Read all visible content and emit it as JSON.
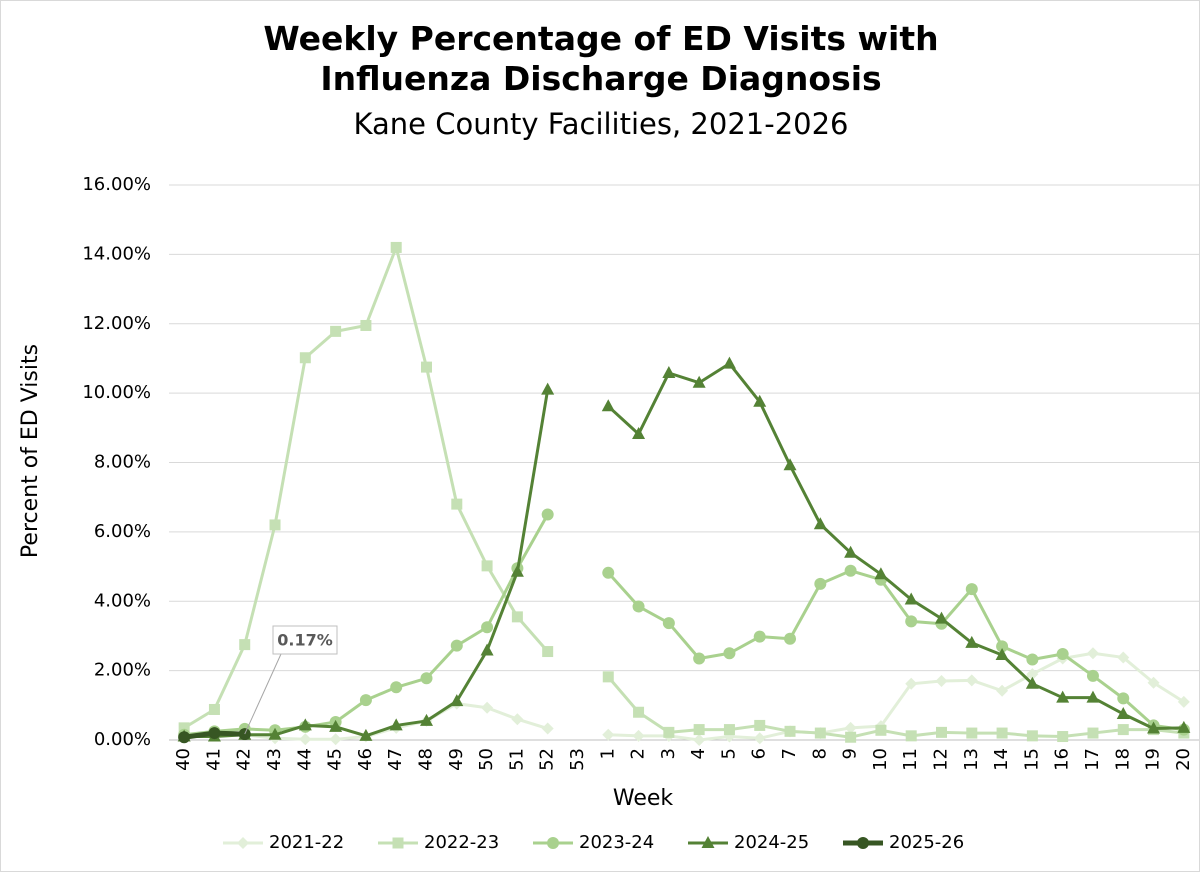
{
  "chart_data": {
    "type": "line",
    "title": "Weekly Percentage of ED Visits with Influenza Discharge Diagnosis",
    "subtitle": "Kane County Facilities, 2021-2026",
    "x_label": "Week",
    "y_label": "Percent of ED Visits",
    "categories": [
      "40",
      "41",
      "42",
      "43",
      "44",
      "45",
      "46",
      "47",
      "48",
      "49",
      "50",
      "51",
      "52",
      "53",
      "1",
      "2",
      "3",
      "4",
      "5",
      "6",
      "7",
      "8",
      "9",
      "10",
      "11",
      "12",
      "13",
      "14",
      "15",
      "16",
      "17",
      "18",
      "19",
      "20"
    ],
    "ylim": [
      0,
      16
    ],
    "yticks": [
      {
        "value": 0,
        "label": "0.00%"
      },
      {
        "value": 2,
        "label": "2.00%"
      },
      {
        "value": 4,
        "label": "4.00%"
      },
      {
        "value": 6,
        "label": "6.00%"
      },
      {
        "value": 8,
        "label": "8.00%"
      },
      {
        "value": 10,
        "label": "10.00%"
      },
      {
        "value": 12,
        "label": "12.00%"
      },
      {
        "value": 14,
        "label": "14.00%"
      },
      {
        "value": 16,
        "label": "16.00%"
      }
    ],
    "grid": true,
    "legend": "bottom",
    "series": [
      {
        "name": "2021-22",
        "color": "#e2efd9",
        "marker": "diamond",
        "values": [
          0.1,
          0.15,
          0.15,
          0.05,
          0.02,
          0.02,
          0.1,
          0.35,
          0.55,
          1.05,
          0.93,
          0.6,
          0.33,
          null,
          0.15,
          0.12,
          0.12,
          0.0,
          0.1,
          0.05,
          0.25,
          0.2,
          0.35,
          0.4,
          1.62,
          1.7,
          1.72,
          1.42,
          1.9,
          2.35,
          2.5,
          2.38,
          1.65,
          1.1
        ]
      },
      {
        "name": "2022-23",
        "color": "#c5e0b4",
        "marker": "square",
        "values": [
          0.35,
          0.88,
          2.75,
          6.2,
          11.02,
          11.78,
          11.95,
          14.2,
          10.75,
          6.8,
          5.02,
          3.55,
          2.55,
          null,
          1.82,
          0.8,
          0.22,
          0.3,
          0.3,
          0.42,
          0.25,
          0.2,
          0.08,
          0.28,
          0.12,
          0.22,
          0.2,
          0.2,
          0.12,
          0.1,
          0.2,
          0.3,
          0.3,
          0.2
        ]
      },
      {
        "name": "2023-24",
        "color": "#a9d18e",
        "marker": "circle",
        "values": [
          0.15,
          0.25,
          0.32,
          0.28,
          0.38,
          0.52,
          1.15,
          1.52,
          1.78,
          2.72,
          3.25,
          4.95,
          6.5,
          null,
          4.82,
          3.85,
          3.37,
          2.35,
          2.5,
          2.98,
          2.92,
          4.5,
          4.88,
          4.62,
          3.42,
          3.35,
          4.35,
          2.7,
          2.32,
          2.48,
          1.85,
          1.2,
          0.42,
          0.3
        ]
      },
      {
        "name": "2024-25",
        "color": "#548235",
        "marker": "triangle",
        "values": [
          0.1,
          0.1,
          0.15,
          0.15,
          0.42,
          0.38,
          0.12,
          0.42,
          0.55,
          1.12,
          2.58,
          4.85,
          10.1,
          null,
          9.62,
          8.82,
          10.58,
          10.3,
          10.85,
          9.75,
          7.92,
          6.22,
          5.4,
          4.78,
          4.05,
          3.5,
          2.8,
          2.45,
          1.62,
          1.22,
          1.22,
          0.75,
          0.33,
          0.35
        ]
      },
      {
        "name": "2025-26",
        "color": "#375623",
        "marker": "circle",
        "values": [
          0.08,
          0.2,
          0.17,
          null,
          null,
          null,
          null,
          null,
          null,
          null,
          null,
          null,
          null,
          null,
          null,
          null,
          null,
          null,
          null,
          null,
          null,
          null,
          null,
          null,
          null,
          null,
          null,
          null,
          null,
          null,
          null,
          null,
          null,
          null
        ],
        "value_labels": [
          null,
          null,
          "0.17%",
          null,
          null,
          null,
          null,
          null,
          null,
          null,
          null,
          null,
          null,
          null,
          null,
          null,
          null,
          null,
          null,
          null,
          null,
          null,
          null,
          null,
          null,
          null,
          null,
          null,
          null,
          null,
          null,
          null,
          null,
          null
        ]
      }
    ]
  }
}
